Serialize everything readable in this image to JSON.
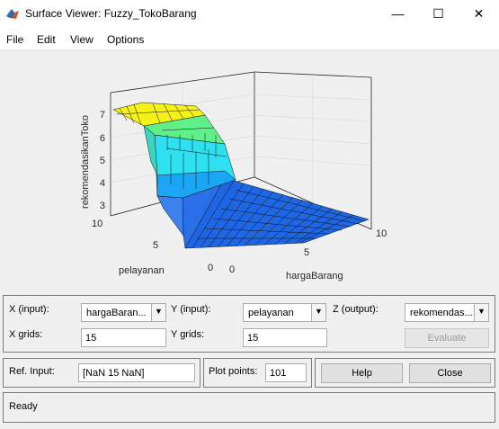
{
  "window": {
    "title": "Surface Viewer: Fuzzy_TokoBarang",
    "minimize": "—",
    "maximize": "☐",
    "close": "✕"
  },
  "menu": [
    "File",
    "Edit",
    "View",
    "Options"
  ],
  "plot": {
    "zlabel": "rekomendasikanToko",
    "xlabel": "hargaBarang",
    "ylabel": "pelayanan",
    "z_ticks": [
      "7",
      "6",
      "5",
      "4",
      "3"
    ],
    "x_ticks": [
      "0",
      "5",
      "10"
    ],
    "y_ticks": [
      "10",
      "5",
      "0"
    ]
  },
  "controls": {
    "x_input_label": "X (input):",
    "x_input_value": "hargaBaran...",
    "y_input_label": "Y (input):",
    "y_input_value": "pelayanan",
    "z_output_label": "Z (output):",
    "z_output_value": "rekomendas...",
    "x_grids_label": "X grids:",
    "x_grids_value": "15",
    "y_grids_label": "Y grids:",
    "y_grids_value": "15",
    "evaluate_label": "Evaluate",
    "ref_input_label": "Ref. Input:",
    "ref_input_value": "[NaN 15 NaN]",
    "plot_points_label": "Plot points:",
    "plot_points_value": "101",
    "help_label": "Help",
    "close_label": "Close"
  },
  "status": "Ready"
}
